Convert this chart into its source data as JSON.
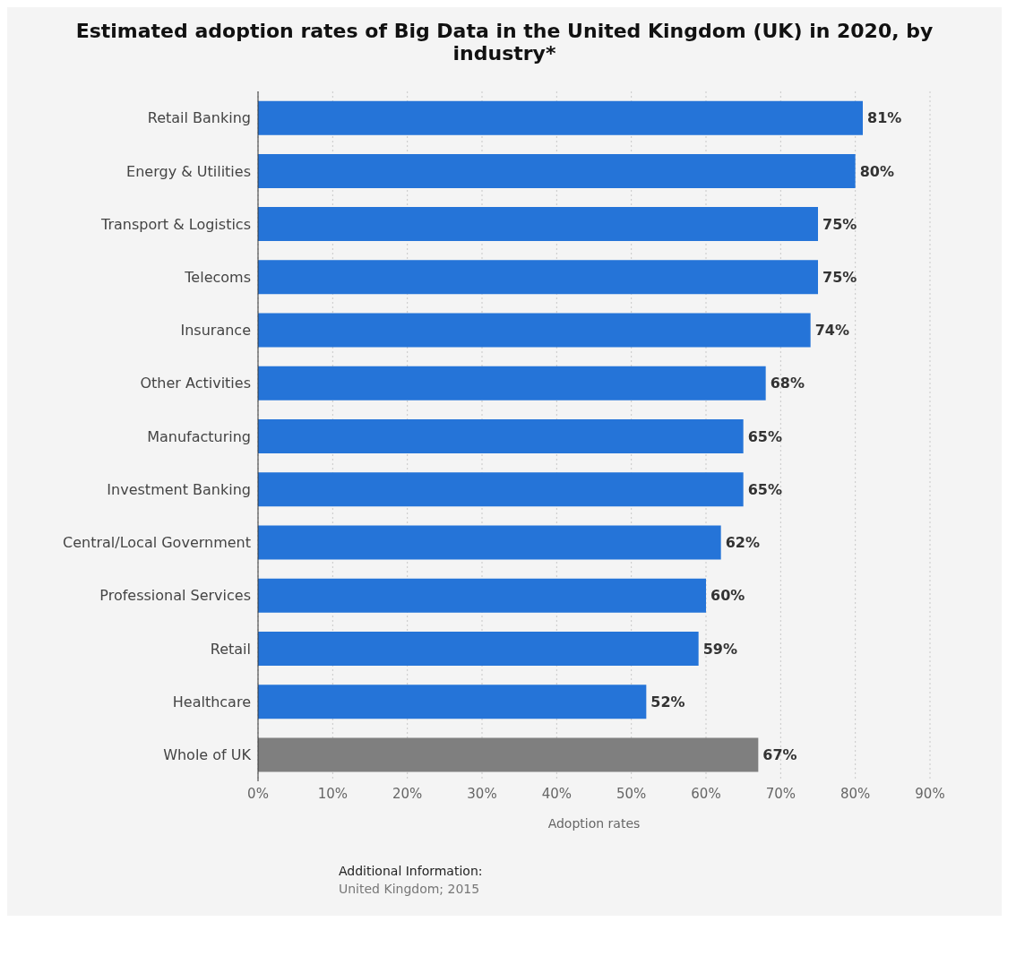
{
  "chart_data": {
    "type": "bar",
    "orientation": "horizontal",
    "title": "Estimated adoption rates of Big Data in the United Kingdom (UK) in 2020, by industry*",
    "xlabel": "Adoption rates",
    "categories": [
      "Retail Banking",
      "Energy & Utilities",
      "Transport & Logistics",
      "Telecoms",
      "Insurance",
      "Other Activities",
      "Manufacturing",
      "Investment Banking",
      "Central/Local Government",
      "Professional Services",
      "Retail",
      "Healthcare",
      "Whole of UK"
    ],
    "values": [
      81,
      80,
      75,
      75,
      74,
      68,
      65,
      65,
      62,
      60,
      59,
      52,
      67
    ],
    "value_labels": [
      "81%",
      "80%",
      "75%",
      "75%",
      "74%",
      "68%",
      "65%",
      "65%",
      "62%",
      "60%",
      "59%",
      "52%",
      "67%"
    ],
    "colors": [
      "#2574d8",
      "#2574d8",
      "#2574d8",
      "#2574d8",
      "#2574d8",
      "#2574d8",
      "#2574d8",
      "#2574d8",
      "#2574d8",
      "#2574d8",
      "#2574d8",
      "#2574d8",
      "#7f7f7f"
    ],
    "xlim": [
      0,
      90
    ],
    "xticks": [
      {
        "value": 0,
        "label": "0%"
      },
      {
        "value": 10,
        "label": "10%"
      },
      {
        "value": 20,
        "label": "20%"
      },
      {
        "value": 30,
        "label": "30%"
      },
      {
        "value": 40,
        "label": "40%"
      },
      {
        "value": 50,
        "label": "50%"
      },
      {
        "value": 60,
        "label": "60%"
      },
      {
        "value": 70,
        "label": "70%"
      },
      {
        "value": 80,
        "label": "80%"
      },
      {
        "value": 90,
        "label": "90%"
      }
    ],
    "grid": "x",
    "legend": false,
    "annotations": [
      "Additional Information:",
      "United Kingdom; 2015"
    ]
  }
}
